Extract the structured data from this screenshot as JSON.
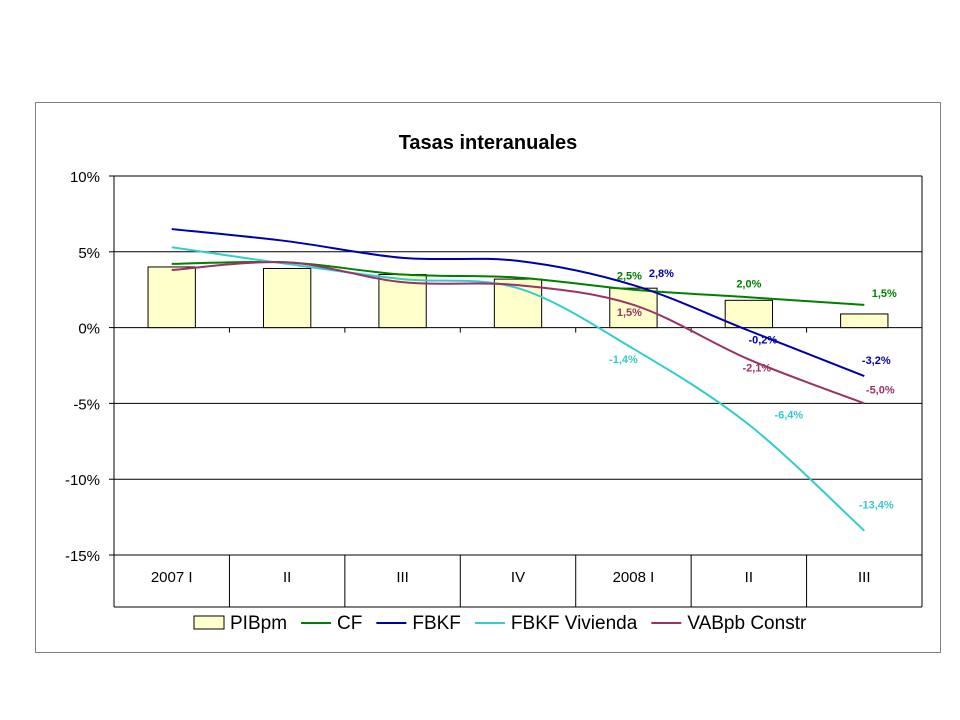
{
  "chart_data": {
    "type": "bar",
    "title": "Tasas interanuales",
    "categories": [
      "2007 I",
      "II",
      "III",
      "IV",
      "2008 I",
      "II",
      "III"
    ],
    "ylim": [
      -15,
      10
    ],
    "yticks": [
      "10%",
      "5%",
      "0%",
      "-5%",
      "-10%",
      "-15%"
    ],
    "ytick_values": [
      10,
      5,
      0,
      -5,
      -10,
      -15
    ],
    "grid": true,
    "legend_position": "bottom",
    "series": [
      {
        "name": "PIBpm",
        "kind": "bar",
        "color": "#ffffcc",
        "values": [
          4.0,
          3.9,
          3.5,
          3.2,
          2.6,
          1.8,
          0.9
        ],
        "labels": [
          "",
          "",
          "",
          "",
          "",
          "",
          ""
        ]
      },
      {
        "name": "CF",
        "kind": "line",
        "color": "#008000",
        "values": [
          4.2,
          4.3,
          3.5,
          3.3,
          2.5,
          2.0,
          1.5
        ],
        "labels": [
          "",
          "",
          "",
          "",
          "2,5%",
          "2,0%",
          "1,5%"
        ]
      },
      {
        "name": "FBKF",
        "kind": "line",
        "color": "#0000aa",
        "values": [
          6.5,
          5.7,
          4.6,
          4.4,
          2.8,
          -0.2,
          -3.2
        ],
        "labels": [
          "",
          "",
          "",
          "",
          "2,8%",
          "-0,2%",
          "-3,2%"
        ]
      },
      {
        "name": "FBKF Vivienda",
        "kind": "line",
        "color": "#33cccc",
        "values": [
          5.3,
          4.2,
          3.2,
          2.6,
          -1.4,
          -6.4,
          -13.4
        ],
        "labels": [
          "",
          "",
          "",
          "",
          "-1,4%",
          "-6,4%",
          "-13,4%"
        ]
      },
      {
        "name": "VABpb Constr",
        "kind": "line",
        "color": "#993366",
        "values": [
          3.8,
          4.3,
          3.0,
          2.8,
          1.5,
          -2.1,
          -5.0
        ],
        "labels": [
          "",
          "",
          "",
          "",
          "1,5%",
          "-2,1%",
          "-5,0%"
        ]
      }
    ]
  }
}
